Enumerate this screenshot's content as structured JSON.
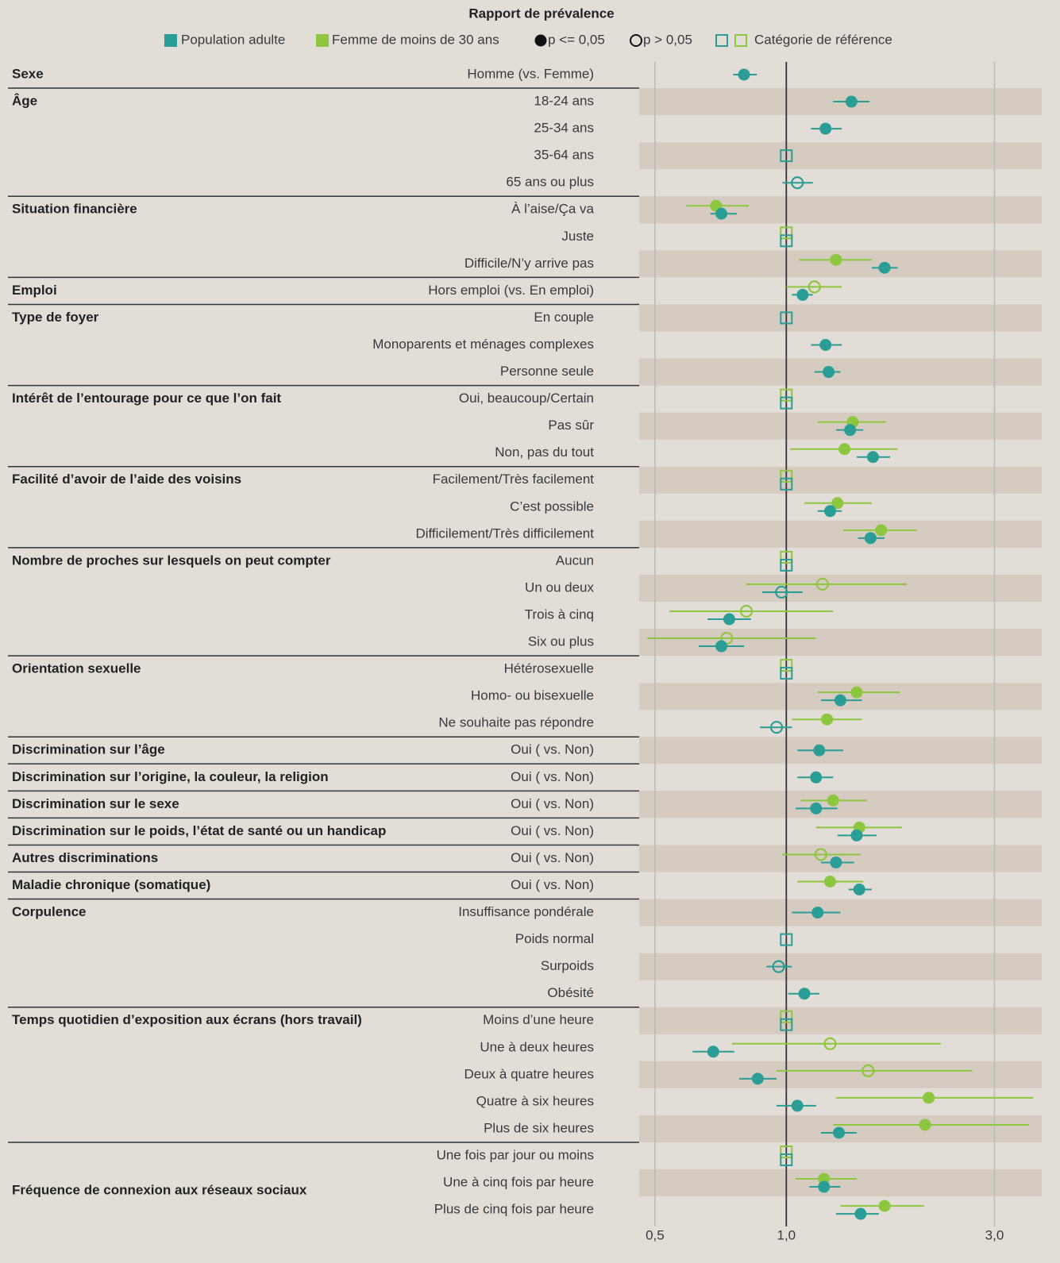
{
  "chart_data": {
    "type": "forest",
    "title": "Rapport de prévalence",
    "legend": [
      {
        "label": "Population adulte",
        "marker": "square",
        "color": "#2a9d96"
      },
      {
        "label": "Femme de moins de 30 ans",
        "marker": "square",
        "color": "#8dc63f"
      },
      {
        "label": "p <= 0,05",
        "marker": "filled",
        "color": "#111111"
      },
      {
        "label": "p > 0,05",
        "marker": "open",
        "color": "#111111"
      },
      {
        "label": "Catégorie de référence",
        "marker": "ref",
        "colors": [
          "#2a9d96",
          "#8dc63f"
        ]
      }
    ],
    "groups": [
      {
        "name": "Sexe",
        "categories": [
          "Homme (vs. Femme)"
        ]
      },
      {
        "name": "Âge",
        "categories": [
          "18-24 ans",
          "25-34 ans",
          "35-64 ans",
          "65 ans ou plus"
        ]
      },
      {
        "name": "Situation financière",
        "categories": [
          "À l’aise/Ça va",
          "Juste",
          "Difficile/N’y arrive pas"
        ]
      },
      {
        "name": "Emploi",
        "categories": [
          "Hors emploi (vs. En emploi)"
        ]
      },
      {
        "name": "Type de foyer",
        "categories": [
          "En couple",
          "Monoparents et ménages complexes",
          "Personne seule"
        ]
      },
      {
        "name": "Intérêt de l’entourage pour ce que l’on fait",
        "categories": [
          "Oui, beaucoup/Certain",
          "Pas sûr",
          "Non, pas du tout"
        ]
      },
      {
        "name": "Facilité d’avoir de l’aide des voisins",
        "categories": [
          "Facilement/Très facilement",
          "C’est possible",
          "Difficilement/Très difficilement"
        ]
      },
      {
        "name": "Nombre de proches sur lesquels on peut compter",
        "categories": [
          "Aucun",
          "Un ou deux",
          "Trois à cinq",
          "Six ou plus"
        ]
      },
      {
        "name": "Orientation sexuelle",
        "categories": [
          "Hétérosexuelle",
          "Homo- ou bisexuelle",
          "Ne souhaite pas répondre"
        ]
      },
      {
        "name": "Discrimination sur l’âge",
        "categories": [
          "Oui ( vs. Non)"
        ]
      },
      {
        "name": "Discrimination sur l’origine, la couleur, la religion",
        "categories": [
          "Oui ( vs. Non)"
        ]
      },
      {
        "name": "Discrimination sur le sexe",
        "categories": [
          "Oui ( vs. Non)"
        ]
      },
      {
        "name": "Discrimination sur le poids, l’état de santé ou un handicap",
        "categories": [
          "Oui ( vs. Non)"
        ]
      },
      {
        "name": "Autres discriminations",
        "categories": [
          "Oui ( vs. Non)"
        ]
      },
      {
        "name": "Maladie chronique (somatique)",
        "categories": [
          "Oui ( vs. Non)"
        ]
      },
      {
        "name": "Corpulence",
        "categories": [
          "Insuffisance pondérale",
          "Poids normal",
          "Surpoids",
          "Obésité"
        ]
      },
      {
        "name": "Temps quotidien d’exposition aux écrans (hors travail)",
        "categories": [
          "Moins d’une heure",
          "Une à deux heures",
          "Deux à quatre heures",
          "Quatre à six heures",
          "Plus de six heures"
        ]
      },
      {
        "name": "Fréquence de connexion aux réseaux sociaux",
        "categories": [
          "Une fois par jour ou moins",
          "Une à cinq fois par heure",
          "Plus de cinq fois par heure"
        ]
      }
    ],
    "series": [
      {
        "name": "Population adulte",
        "color": "#2a9d96",
        "values": [
          0.8,
          1.41,
          1.23,
          1,
          1.06,
          0.71,
          1,
          1.68,
          1.09,
          1,
          1.23,
          1.25,
          1,
          1.4,
          1.58,
          1,
          1.26,
          1.56,
          1,
          0.975,
          0.74,
          0.71,
          1,
          1.33,
          0.95,
          1.19,
          1.17,
          1.17,
          1.45,
          1.3,
          1.47,
          1.18,
          1,
          0.96,
          1.1,
          1,
          0.68,
          0.86,
          1.06,
          1.32,
          1,
          1.22,
          1.48
        ],
        "low": [
          0.755,
          1.28,
          1.14,
          null,
          0.98,
          0.67,
          null,
          1.57,
          1.03,
          null,
          1.14,
          1.16,
          null,
          1.3,
          1.45,
          null,
          1.18,
          1.46,
          null,
          0.88,
          0.66,
          0.63,
          null,
          1.2,
          0.87,
          1.06,
          1.06,
          1.05,
          1.31,
          1.2,
          1.39,
          1.03,
          null,
          0.9,
          1.01,
          null,
          0.61,
          0.78,
          0.95,
          1.2,
          null,
          1.13,
          1.3
        ],
        "high": [
          0.856,
          1.55,
          1.34,
          null,
          1.15,
          0.77,
          null,
          1.8,
          1.15,
          null,
          1.34,
          1.33,
          null,
          1.5,
          1.73,
          null,
          1.34,
          1.68,
          null,
          1.09,
          0.83,
          0.8,
          null,
          1.49,
          1.03,
          1.35,
          1.28,
          1.31,
          1.61,
          1.43,
          1.57,
          1.33,
          null,
          1.03,
          1.19,
          null,
          0.76,
          0.95,
          1.17,
          1.45,
          null,
          1.33,
          1.63
        ],
        "markers": [
          "filled",
          "filled",
          "filled",
          "ref",
          "open",
          "filled",
          "ref",
          "filled",
          "filled",
          "ref",
          "filled",
          "filled",
          "ref",
          "filled",
          "filled",
          "ref",
          "filled",
          "filled",
          "ref",
          "open",
          "filled",
          "filled",
          "ref",
          "filled",
          "open",
          "filled",
          "filled",
          "filled",
          "filled",
          "filled",
          "filled",
          "filled",
          "ref",
          "open",
          "filled",
          "ref",
          "filled",
          "filled",
          "filled",
          "filled",
          "ref",
          "filled",
          "filled"
        ]
      },
      {
        "name": "Femme de moins de 30 ans",
        "color": "#8dc63f",
        "values": [
          null,
          null,
          null,
          null,
          null,
          0.69,
          1,
          1.3,
          1.16,
          null,
          null,
          null,
          1,
          1.42,
          1.36,
          1,
          1.31,
          1.65,
          1,
          1.21,
          0.81,
          0.73,
          1,
          1.45,
          1.24,
          null,
          null,
          1.28,
          1.47,
          1.2,
          1.26,
          null,
          null,
          null,
          null,
          1,
          1.26,
          1.54,
          2.12,
          2.08,
          1,
          1.22,
          1.68
        ],
        "low": [
          null,
          null,
          null,
          null,
          null,
          0.59,
          null,
          1.07,
          1.0,
          null,
          null,
          null,
          null,
          1.18,
          1.02,
          null,
          1.1,
          1.35,
          null,
          0.81,
          0.54,
          0.48,
          null,
          1.18,
          1.03,
          null,
          null,
          1.08,
          1.17,
          0.98,
          1.06,
          null,
          null,
          null,
          null,
          null,
          0.75,
          0.95,
          1.3,
          1.28,
          null,
          1.05,
          1.33
        ],
        "high": [
          null,
          null,
          null,
          null,
          null,
          0.82,
          null,
          1.57,
          1.34,
          null,
          null,
          null,
          null,
          1.69,
          1.8,
          null,
          1.57,
          1.99,
          null,
          1.89,
          1.28,
          1.17,
          null,
          1.82,
          1.49,
          null,
          null,
          1.53,
          1.84,
          1.48,
          1.5,
          null,
          null,
          null,
          null,
          null,
          2.26,
          2.67,
          3.68,
          3.6,
          null,
          1.45,
          2.07
        ],
        "markers": [
          null,
          null,
          null,
          null,
          null,
          "filled",
          "ref",
          "filled",
          "open",
          null,
          null,
          null,
          "ref",
          "filled",
          "filled",
          "ref",
          "filled",
          "filled",
          "ref",
          "open",
          "open",
          "open",
          "ref",
          "filled",
          "filled",
          null,
          null,
          "filled",
          "filled",
          "open",
          "filled",
          null,
          null,
          null,
          null,
          "ref",
          "open",
          "open",
          "filled",
          "filled",
          "ref",
          "filled",
          "filled"
        ]
      }
    ],
    "log_x": true,
    "xlim": [
      0.46,
      3.85
    ],
    "xticks": [
      {
        "value": 0.5,
        "label": "0,5"
      },
      {
        "value": 1.0,
        "label": "1,0"
      },
      {
        "value": 3.0,
        "label": "3,0"
      }
    ],
    "reference_line": 1,
    "grid": true
  }
}
